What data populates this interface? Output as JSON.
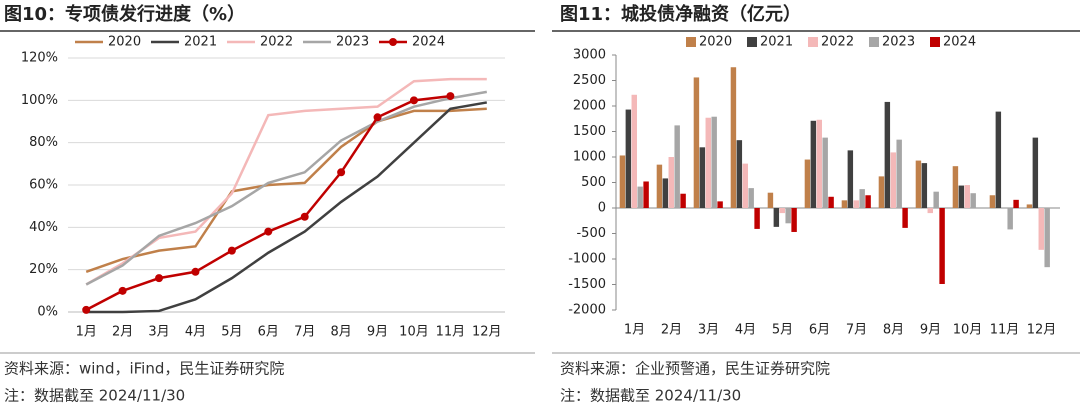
{
  "chart_data": [
    {
      "type": "line",
      "title": "图10：专项债发行进度（%）",
      "categories": [
        "1月",
        "2月",
        "3月",
        "4月",
        "5月",
        "6月",
        "7月",
        "8月",
        "9月",
        "10月",
        "11月",
        "12月"
      ],
      "series": [
        {
          "name": "2020",
          "color": "#c0804a",
          "values": [
            19,
            25,
            29,
            31,
            57,
            60,
            61,
            78,
            90,
            95,
            95,
            96
          ]
        },
        {
          "name": "2021",
          "color": "#404040",
          "values": [
            0,
            0,
            0.5,
            6,
            16,
            28,
            38,
            52,
            64,
            80,
            96,
            99
          ]
        },
        {
          "name": "2022",
          "color": "#f4b8b8",
          "values": [
            13,
            23,
            35,
            38,
            56,
            93,
            95,
            96,
            97,
            109,
            110,
            110
          ]
        },
        {
          "name": "2023",
          "color": "#a6a6a6",
          "values": [
            13,
            22,
            36,
            42,
            50,
            61,
            66,
            81,
            90,
            97,
            101,
            104
          ]
        },
        {
          "name": "2024",
          "color": "#c00000",
          "marker": "circle",
          "values": [
            1,
            10,
            16,
            19,
            29,
            38,
            45,
            66,
            92,
            100,
            102,
            null
          ]
        }
      ],
      "ylim": [
        0,
        120
      ],
      "yticks": [
        {
          "value": 0,
          "label": "0%"
        },
        {
          "value": 20,
          "label": "20%"
        },
        {
          "value": 40,
          "label": "40%"
        },
        {
          "value": 60,
          "label": "60%"
        },
        {
          "value": 80,
          "label": "80%"
        },
        {
          "value": 100,
          "label": "100%"
        },
        {
          "value": 120,
          "label": "120%"
        }
      ],
      "grid": true,
      "legend": "top",
      "source": "资料来源：wind，iFind，民生证券研究院",
      "note": "注：数据截至 2024/11/30"
    },
    {
      "type": "bar",
      "title": "图11：城投债净融资（亿元）",
      "categories": [
        "1月",
        "2月",
        "3月",
        "4月",
        "5月",
        "6月",
        "7月",
        "8月",
        "9月",
        "10月",
        "11月",
        "12月"
      ],
      "series": [
        {
          "name": "2020",
          "color": "#c0804a",
          "values": [
            1030,
            850,
            2560,
            2760,
            300,
            950,
            150,
            620,
            930,
            820,
            250,
            70
          ]
        },
        {
          "name": "2021",
          "color": "#404040",
          "values": [
            1930,
            580,
            1190,
            1330,
            -370,
            1710,
            1130,
            2080,
            880,
            440,
            1890,
            1380
          ]
        },
        {
          "name": "2022",
          "color": "#f4b8b8",
          "values": [
            2220,
            1000,
            1770,
            870,
            -100,
            1730,
            150,
            1090,
            -100,
            450,
            0,
            -820
          ]
        },
        {
          "name": "2023",
          "color": "#a6a6a6",
          "values": [
            420,
            1620,
            1790,
            390,
            -300,
            1380,
            370,
            1340,
            320,
            290,
            -420,
            -1160
          ]
        },
        {
          "name": "2024",
          "color": "#c00000",
          "values": [
            520,
            280,
            130,
            -410,
            -470,
            220,
            250,
            -390,
            -1490,
            0,
            160,
            null
          ]
        }
      ],
      "ylim": [
        -2000,
        3000
      ],
      "yticks": [
        -2000,
        -1500,
        -1000,
        -500,
        0,
        500,
        1000,
        1500,
        2000,
        2500,
        3000
      ],
      "grid": false,
      "legend": "top",
      "source": "资料来源：企业预警通，民生证券研究院",
      "note": "注：数据截至 2024/11/30"
    }
  ]
}
